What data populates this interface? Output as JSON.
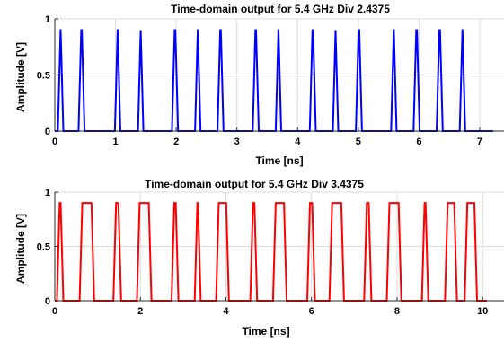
{
  "chart_data": [
    {
      "type": "line",
      "title": "Time-domain output for 5.4 GHz Div 2.4375",
      "xlabel": "Time [ns]",
      "ylabel": "Amplitude [V]",
      "xlim": [
        0,
        7.4
      ],
      "ylim": [
        0,
        1
      ],
      "xticks": [
        0,
        1,
        2,
        3,
        4,
        5,
        6,
        7
      ],
      "yticks": [
        0,
        0.5,
        1
      ],
      "xtick_labels": [
        "0",
        "1",
        "2",
        "3",
        "4",
        "5",
        "6",
        "7"
      ],
      "ytick_labels": [
        "0",
        "0.5",
        "1"
      ],
      "grid": true,
      "color": "#0000ff",
      "high_level": 0.9,
      "low_level": 0,
      "x_end": 7.22,
      "pulses": [
        [
          0.05,
          0.14
        ],
        [
          0.39,
          0.49
        ],
        [
          0.99,
          1.08
        ],
        [
          1.37,
          1.46
        ],
        [
          1.93,
          2.03
        ],
        [
          2.31,
          2.4
        ],
        [
          2.68,
          2.78
        ],
        [
          3.26,
          3.36
        ],
        [
          3.64,
          3.73
        ],
        [
          4.2,
          4.3
        ],
        [
          4.58,
          4.67
        ],
        [
          4.96,
          5.06
        ],
        [
          5.54,
          5.63
        ],
        [
          5.91,
          6.01
        ],
        [
          6.29,
          6.39
        ],
        [
          6.67,
          6.76
        ]
      ]
    },
    {
      "type": "line",
      "title": "Time-domain output for 5.4 GHz Div 3.4375",
      "xlabel": "Time [ns]",
      "ylabel": "Amplitude [V]",
      "xlim": [
        0,
        10.5
      ],
      "ylim": [
        0,
        1
      ],
      "xticks": [
        0,
        2,
        4,
        6,
        8,
        10
      ],
      "yticks": [
        0,
        0.5,
        1
      ],
      "xtick_labels": [
        "0",
        "2",
        "4",
        "6",
        "8",
        "10"
      ],
      "ytick_labels": [
        "0",
        "0.5",
        "1"
      ],
      "grid": true,
      "color": "#ff0000",
      "high_level": 0.9,
      "low_level": 0,
      "x_end": 10.1,
      "pulses": [
        [
          0.05,
          0.2
        ],
        [
          0.58,
          0.92
        ],
        [
          1.37,
          1.55
        ],
        [
          1.92,
          2.26
        ],
        [
          2.73,
          2.89
        ],
        [
          3.27,
          3.41
        ],
        [
          3.77,
          4.07
        ],
        [
          4.57,
          4.73
        ],
        [
          5.1,
          5.42
        ],
        [
          5.9,
          6.08
        ],
        [
          6.42,
          6.76
        ],
        [
          7.23,
          7.4
        ],
        [
          7.76,
          8.1
        ],
        [
          8.58,
          8.73
        ],
        [
          9.12,
          9.4
        ],
        [
          9.58,
          9.87
        ]
      ]
    }
  ]
}
